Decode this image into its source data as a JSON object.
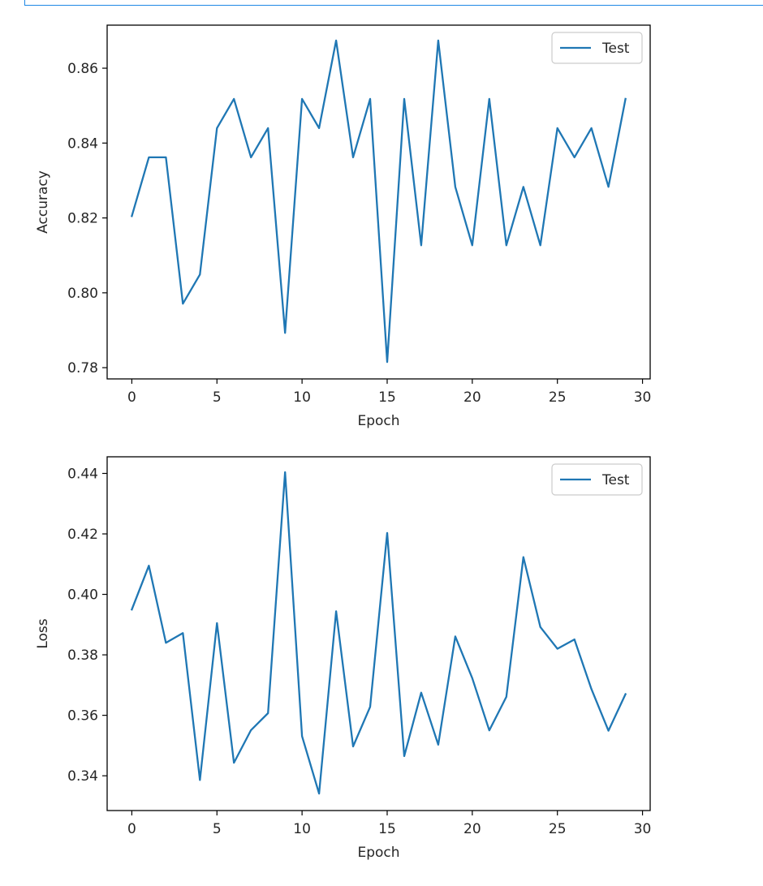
{
  "chart_data": [
    {
      "type": "line",
      "xlabel": "Epoch",
      "ylabel": "Accuracy",
      "xlim": [
        -1.45,
        30.45
      ],
      "ylim": [
        0.777,
        0.8715
      ],
      "xticks": [
        0,
        5,
        10,
        15,
        20,
        25,
        30
      ],
      "yticks": [
        0.78,
        0.8,
        0.82,
        0.84,
        0.86
      ],
      "ytick_labels": [
        "0.78",
        "0.80",
        "0.82",
        "0.84",
        "0.86"
      ],
      "legend": "upper right",
      "series": [
        {
          "name": "Test",
          "color": "#1f77b4",
          "x": [
            0,
            1,
            2,
            3,
            4,
            5,
            6,
            7,
            8,
            9,
            10,
            11,
            12,
            13,
            14,
            15,
            16,
            17,
            18,
            19,
            20,
            21,
            22,
            23,
            24,
            25,
            26,
            27,
            28,
            29
          ],
          "y": [
            0.8205,
            0.8362,
            0.8362,
            0.7971,
            0.8049,
            0.844,
            0.8518,
            0.8362,
            0.844,
            0.7893,
            0.8518,
            0.844,
            0.8674,
            0.8362,
            0.8518,
            0.7815,
            0.8518,
            0.8127,
            0.8674,
            0.8283,
            0.8127,
            0.8518,
            0.8127,
            0.8283,
            0.8127,
            0.844,
            0.8362,
            0.844,
            0.8283,
            0.8518
          ]
        }
      ]
    },
    {
      "type": "line",
      "xlabel": "Epoch",
      "ylabel": "Loss",
      "xlim": [
        -1.45,
        30.45
      ],
      "ylim": [
        0.3285,
        0.4455
      ],
      "xticks": [
        0,
        5,
        10,
        15,
        20,
        25,
        30
      ],
      "yticks": [
        0.34,
        0.36,
        0.38,
        0.4,
        0.42,
        0.44
      ],
      "ytick_labels": [
        "0.34",
        "0.36",
        "0.38",
        "0.40",
        "0.42",
        "0.44"
      ],
      "legend": "upper right",
      "series": [
        {
          "name": "Test",
          "color": "#1f77b4",
          "x": [
            0,
            1,
            2,
            3,
            4,
            5,
            6,
            7,
            8,
            9,
            10,
            11,
            12,
            13,
            14,
            15,
            16,
            17,
            18,
            19,
            20,
            21,
            22,
            23,
            24,
            25,
            26,
            27,
            28,
            29
          ],
          "y": [
            0.395,
            0.4095,
            0.384,
            0.3872,
            0.3386,
            0.3905,
            0.3443,
            0.3551,
            0.3607,
            0.4404,
            0.3531,
            0.3341,
            0.3944,
            0.3497,
            0.3628,
            0.4203,
            0.3465,
            0.3675,
            0.3503,
            0.3861,
            0.3723,
            0.355,
            0.3661,
            0.4123,
            0.3892,
            0.382,
            0.3851,
            0.3687,
            0.3549,
            0.367
          ]
        }
      ]
    }
  ]
}
